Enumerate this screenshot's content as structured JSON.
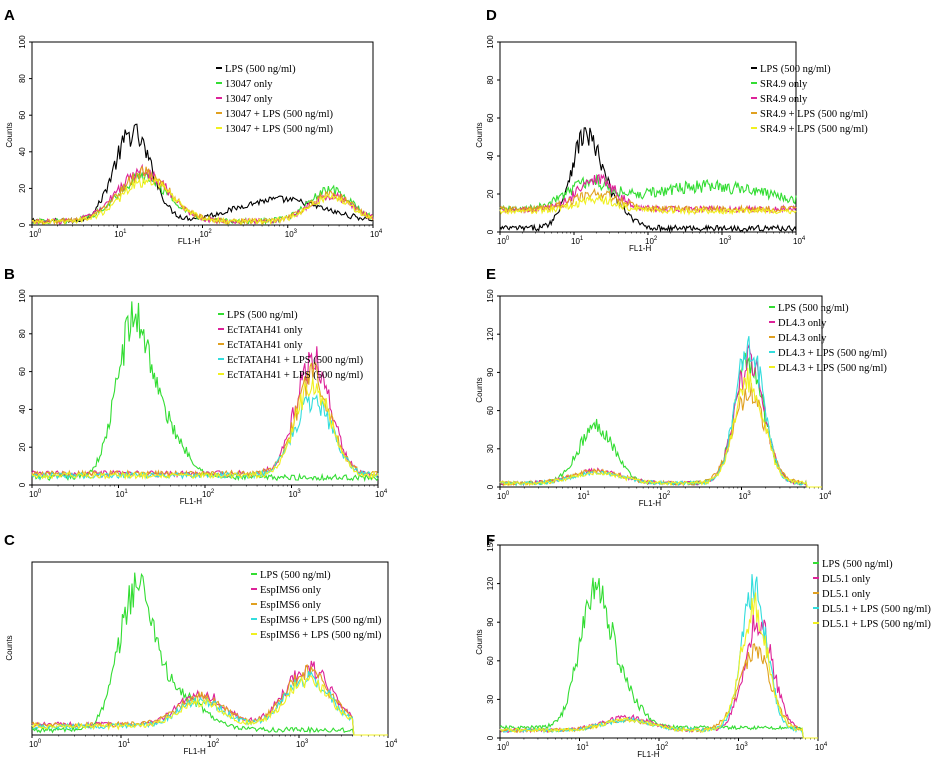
{
  "figure": {
    "panel_count": 6,
    "colors": {
      "black": "#000000",
      "green": "#33dd33",
      "magenta": "#dd2299",
      "orange": "#e0a020",
      "cyan": "#33dddd",
      "yellow": "#f0f020"
    }
  },
  "chart_data": [
    {
      "panel": "A",
      "type": "line",
      "xscale": "log",
      "xlabel": "FL1-H",
      "ylabel": "Counts",
      "xlim": [
        1,
        10000
      ],
      "ylim": [
        0,
        100
      ],
      "xticks": [
        {
          "base": "10",
          "exp": "0"
        },
        {
          "base": "10",
          "exp": "1"
        },
        {
          "base": "10",
          "exp": "2"
        },
        {
          "base": "10",
          "exp": "3"
        },
        {
          "base": "10",
          "exp": "4"
        }
      ],
      "yticks": [
        "0",
        "20",
        "40",
        "60",
        "80",
        "100"
      ],
      "series": [
        {
          "name": "LPS (500 ng/ml)",
          "color": "#000000",
          "peaks": [
            {
              "center": 1.18,
              "height": 48,
              "width": 0.22
            },
            {
              "center": 2.9,
              "height": 12,
              "width": 0.5
            }
          ],
          "baseline": 2,
          "tail_end": 4.0
        },
        {
          "name": "13047 only",
          "color": "#33dd33",
          "peaks": [
            {
              "center": 1.3,
              "height": 24,
              "width": 0.3
            },
            {
              "center": 3.5,
              "height": 17,
              "width": 0.25
            }
          ],
          "baseline": 2,
          "tail_end": 4.0
        },
        {
          "name": "13047 only",
          "color": "#dd2299",
          "peaks": [
            {
              "center": 1.3,
              "height": 27,
              "width": 0.3
            },
            {
              "center": 3.5,
              "height": 14,
              "width": 0.25
            }
          ],
          "baseline": 2,
          "tail_end": 4.0
        },
        {
          "name": "13047 + LPS (500 ng/ml)",
          "color": "#e0a020",
          "peaks": [
            {
              "center": 1.32,
              "height": 26,
              "width": 0.3
            },
            {
              "center": 3.5,
              "height": 15,
              "width": 0.25
            }
          ],
          "baseline": 2,
          "tail_end": 4.0
        },
        {
          "name": "13047 + LPS (500 ng/ml)",
          "color": "#f0f020",
          "peaks": [
            {
              "center": 1.35,
              "height": 22,
              "width": 0.3
            },
            {
              "center": 3.5,
              "height": 13,
              "width": 0.25
            }
          ],
          "baseline": 2,
          "tail_end": 4.0
        }
      ]
    },
    {
      "panel": "B",
      "type": "line",
      "xscale": "log",
      "xlabel": "FL1-H",
      "ylabel": "",
      "xlim": [
        1,
        10000
      ],
      "ylim": [
        0,
        100
      ],
      "xticks": [
        {
          "base": "10",
          "exp": "0"
        },
        {
          "base": "10",
          "exp": "1"
        },
        {
          "base": "10",
          "exp": "2"
        },
        {
          "base": "10",
          "exp": "3"
        },
        {
          "base": "10",
          "exp": "4"
        }
      ],
      "yticks": [
        "0",
        "20",
        "40",
        "60",
        "80",
        "100"
      ],
      "series": [
        {
          "name": "LPS (500 ng/ml)",
          "color": "#33dd33",
          "peaks": [
            {
              "center": 1.18,
              "height": 82,
              "width": 0.2
            },
            {
              "center": 1.6,
              "height": 20,
              "width": 0.2
            }
          ],
          "baseline": 4,
          "tail_end": 4.0
        },
        {
          "name": "EcTATAH41 only",
          "color": "#dd2299",
          "peaks": [
            {
              "center": 3.25,
              "height": 60,
              "width": 0.2
            }
          ],
          "baseline": 6,
          "tail_end": 4.0
        },
        {
          "name": "EcTATAH41 only",
          "color": "#e0a020",
          "peaks": [
            {
              "center": 3.25,
              "height": 52,
              "width": 0.2
            }
          ],
          "baseline": 6,
          "tail_end": 4.0
        },
        {
          "name": "EcTATAH41 + LPS (500 ng/ml)",
          "color": "#33dddd",
          "peaks": [
            {
              "center": 3.25,
              "height": 40,
              "width": 0.22
            }
          ],
          "baseline": 5,
          "tail_end": 4.0
        },
        {
          "name": "EcTATAH41 + LPS (500 ng/ml)",
          "color": "#f0f020",
          "peaks": [
            {
              "center": 3.25,
              "height": 48,
              "width": 0.2
            }
          ],
          "baseline": 5,
          "tail_end": 4.0
        }
      ]
    },
    {
      "panel": "C",
      "type": "line",
      "xscale": "log",
      "xlabel": "FL1-H",
      "ylabel": "Counts",
      "xlim": [
        1,
        10000
      ],
      "ylim": [
        0,
        100
      ],
      "xticks": [
        {
          "base": "10",
          "exp": "0"
        },
        {
          "base": "10",
          "exp": "1"
        },
        {
          "base": "10",
          "exp": "2"
        },
        {
          "base": "10",
          "exp": "3"
        },
        {
          "base": "10",
          "exp": "4"
        }
      ],
      "yticks": [],
      "series": [
        {
          "name": "LPS (500 ng/ml)",
          "color": "#33dd33",
          "peaks": [
            {
              "center": 1.18,
              "height": 82,
              "width": 0.2
            },
            {
              "center": 1.7,
              "height": 18,
              "width": 0.25
            }
          ],
          "baseline": 3,
          "tail_end": 3.6
        },
        {
          "name": "EspIMS6 only",
          "color": "#dd2299",
          "peaks": [
            {
              "center": 1.9,
              "height": 18,
              "width": 0.25
            },
            {
              "center": 3.1,
              "height": 33,
              "width": 0.25
            }
          ],
          "baseline": 6,
          "tail_end": 3.6
        },
        {
          "name": "EspIMS6 only",
          "color": "#e0a020",
          "peaks": [
            {
              "center": 1.9,
              "height": 16,
              "width": 0.25
            },
            {
              "center": 3.1,
              "height": 30,
              "width": 0.25
            }
          ],
          "baseline": 6,
          "tail_end": 3.6
        },
        {
          "name": "EspIMS6 + LPS (500 ng/ml)",
          "color": "#33dddd",
          "peaks": [
            {
              "center": 1.9,
              "height": 15,
              "width": 0.25
            },
            {
              "center": 3.1,
              "height": 28,
              "width": 0.25
            }
          ],
          "baseline": 5,
          "tail_end": 3.6
        },
        {
          "name": "EspIMS6 + LPS (500 ng/ml)",
          "color": "#f0f020",
          "peaks": [
            {
              "center": 1.9,
              "height": 14,
              "width": 0.25
            },
            {
              "center": 3.1,
              "height": 26,
              "width": 0.25
            }
          ],
          "baseline": 5,
          "tail_end": 3.6
        }
      ]
    },
    {
      "panel": "D",
      "type": "line",
      "xscale": "log",
      "xlabel": "FL1-H",
      "ylabel": "Counts",
      "xlim": [
        1,
        10000
      ],
      "ylim": [
        0,
        100
      ],
      "xticks": [
        {
          "base": "10",
          "exp": "0"
        },
        {
          "base": "10",
          "exp": "1"
        },
        {
          "base": "10",
          "exp": "2"
        },
        {
          "base": "10",
          "exp": "3"
        },
        {
          "base": "10",
          "exp": "4"
        }
      ],
      "yticks": [
        "0",
        "20",
        "40",
        "60",
        "80",
        "100"
      ],
      "series": [
        {
          "name": "LPS (500 ng/ml)",
          "color": "#000000",
          "peaks": [
            {
              "center": 1.15,
              "height": 48,
              "width": 0.2
            },
            {
              "center": 1.55,
              "height": 10,
              "width": 0.2
            }
          ],
          "baseline": 2,
          "tail_end": 4.0
        },
        {
          "name": "SR4.9 only",
          "color": "#33dd33",
          "peaks": [
            {
              "center": 1.2,
              "height": 12,
              "width": 0.3
            },
            {
              "center": 2.8,
              "height": 12,
              "width": 0.9
            }
          ],
          "baseline": 12,
          "tail_end": 4.0
        },
        {
          "name": "SR4.9 only",
          "color": "#dd2299",
          "peaks": [
            {
              "center": 1.3,
              "height": 16,
              "width": 0.25
            }
          ],
          "baseline": 12,
          "tail_end": 4.0
        },
        {
          "name": "SR4.9 + LPS (500 ng/ml)",
          "color": "#e0a020",
          "peaks": [
            {
              "center": 1.3,
              "height": 8,
              "width": 0.3
            }
          ],
          "baseline": 12,
          "tail_end": 4.0
        },
        {
          "name": "SR4.9 + LPS (500 ng/ml)",
          "color": "#f0f020",
          "peaks": [
            {
              "center": 1.3,
              "height": 6,
              "width": 0.3
            }
          ],
          "baseline": 11,
          "tail_end": 4.0
        }
      ]
    },
    {
      "panel": "E",
      "type": "line",
      "xscale": "log",
      "xlabel": "FL1-H",
      "ylabel": "Counts",
      "xlim": [
        1,
        10000
      ],
      "ylim": [
        0,
        150
      ],
      "xticks": [
        {
          "base": "10",
          "exp": "0"
        },
        {
          "base": "10",
          "exp": "1"
        },
        {
          "base": "10",
          "exp": "2"
        },
        {
          "base": "10",
          "exp": "3"
        },
        {
          "base": "10",
          "exp": "4"
        }
      ],
      "yticks": [
        "0",
        "30",
        "60",
        "90",
        "120",
        "150"
      ],
      "series": [
        {
          "name": "LPS (500 ng/ml)",
          "color": "#33dd33",
          "peaks": [
            {
              "center": 1.2,
              "height": 45,
              "width": 0.22
            },
            {
              "center": 3.1,
              "height": 95,
              "width": 0.18
            }
          ],
          "baseline": 3,
          "tail_end": 3.8
        },
        {
          "name": "DL4.3 only",
          "color": "#dd2299",
          "peaks": [
            {
              "center": 1.2,
              "height": 10,
              "width": 0.3
            },
            {
              "center": 3.1,
              "height": 95,
              "width": 0.18
            }
          ],
          "baseline": 3,
          "tail_end": 3.8
        },
        {
          "name": "DL4.3 only",
          "color": "#e0a020",
          "peaks": [
            {
              "center": 1.2,
              "height": 10,
              "width": 0.3
            },
            {
              "center": 3.1,
              "height": 70,
              "width": 0.2
            }
          ],
          "baseline": 3,
          "tail_end": 3.8
        },
        {
          "name": "DL4.3 + LPS (500 ng/ml)",
          "color": "#33dddd",
          "peaks": [
            {
              "center": 1.2,
              "height": 8,
              "width": 0.3
            },
            {
              "center": 3.1,
              "height": 108,
              "width": 0.17
            }
          ],
          "baseline": 3,
          "tail_end": 3.8
        },
        {
          "name": "DL4.3 + LPS (500 ng/ml)",
          "color": "#f0f020",
          "peaks": [
            {
              "center": 1.2,
              "height": 8,
              "width": 0.3
            },
            {
              "center": 3.1,
              "height": 80,
              "width": 0.18
            }
          ],
          "baseline": 3,
          "tail_end": 3.8
        }
      ]
    },
    {
      "panel": "F",
      "type": "line",
      "xscale": "log",
      "xlabel": "FL1-H",
      "ylabel": "Counts",
      "xlim": [
        1,
        10000
      ],
      "ylim": [
        0,
        150
      ],
      "xticks": [
        {
          "base": "10",
          "exp": "0"
        },
        {
          "base": "10",
          "exp": "1"
        },
        {
          "base": "10",
          "exp": "2"
        },
        {
          "base": "10",
          "exp": "3"
        },
        {
          "base": "10",
          "exp": "4"
        }
      ],
      "yticks": [
        "0",
        "30",
        "60",
        "90",
        "120",
        "150"
      ],
      "series": [
        {
          "name": "LPS (500 ng/ml)",
          "color": "#33dd33",
          "peaks": [
            {
              "center": 1.2,
              "height": 105,
              "width": 0.2
            },
            {
              "center": 1.6,
              "height": 20,
              "width": 0.2
            }
          ],
          "baseline": 8,
          "tail_end": 3.8
        },
        {
          "name": "DL5.1 only",
          "color": "#dd2299",
          "peaks": [
            {
              "center": 1.6,
              "height": 10,
              "width": 0.3
            },
            {
              "center": 3.25,
              "height": 85,
              "width": 0.18
            }
          ],
          "baseline": 6,
          "tail_end": 3.8
        },
        {
          "name": "DL5.1 only",
          "color": "#e0a020",
          "peaks": [
            {
              "center": 1.6,
              "height": 8,
              "width": 0.3
            },
            {
              "center": 3.2,
              "height": 62,
              "width": 0.2
            }
          ],
          "baseline": 6,
          "tail_end": 3.8
        },
        {
          "name": "DL5.1 + LPS (500 ng/ml)",
          "color": "#33dddd",
          "peaks": [
            {
              "center": 1.6,
              "height": 8,
              "width": 0.3
            },
            {
              "center": 3.2,
              "height": 108,
              "width": 0.16
            }
          ],
          "baseline": 6,
          "tail_end": 3.8
        },
        {
          "name": "DL5.1 + LPS (500 ng/ml)",
          "color": "#f0f020",
          "peaks": [
            {
              "center": 1.6,
              "height": 8,
              "width": 0.3
            },
            {
              "center": 3.2,
              "height": 95,
              "width": 0.17
            }
          ],
          "baseline": 6,
          "tail_end": 3.8
        }
      ]
    }
  ]
}
